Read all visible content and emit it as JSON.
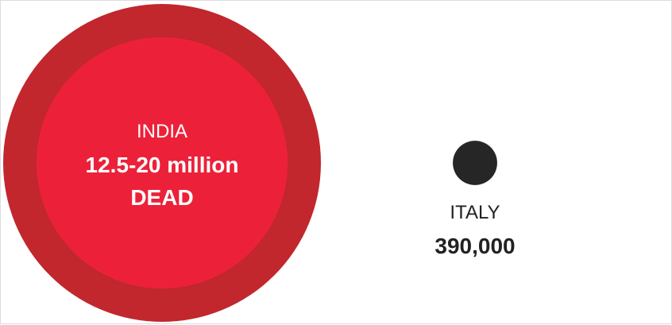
{
  "colors": {
    "outer_circle": "#c1272d",
    "inner_circle": "#ec2139",
    "italy_circle": "#262626",
    "india_text": "#ffffff",
    "italy_text": "#222222"
  },
  "chart_data": {
    "type": "bubble",
    "series": [
      {
        "country": "INDIA",
        "value_text": "12.5-20 million",
        "value_suffix": "DEAD",
        "low": 12500000,
        "high": 20000000
      },
      {
        "country": "ITALY",
        "value_text": "390,000",
        "value": 390000
      }
    ]
  }
}
